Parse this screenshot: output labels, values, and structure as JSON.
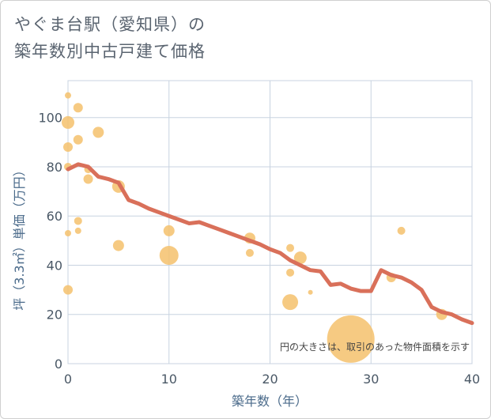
{
  "title_line1": "やぐま台駅（愛知県）の",
  "title_line2": "築年数別中古戸建て価格",
  "chart_data": {
    "type": "scatter",
    "title": "やぐま台駅（愛知県）の築年数別中古戸建て価格",
    "xlabel": "築年数（年）",
    "ylabel": "坪（3.3㎡）単価（万円）",
    "xlim": [
      0,
      40
    ],
    "ylim": [
      0,
      115
    ],
    "xticks": [
      "0",
      "10",
      "20",
      "30",
      "40"
    ],
    "yticks": [
      "0",
      "20",
      "40",
      "60",
      "80",
      "100"
    ],
    "xtick_values": [
      0,
      10,
      20,
      30,
      40
    ],
    "ytick_values": [
      0,
      20,
      40,
      60,
      80,
      100
    ],
    "note": "円の大きさは、取引のあった物件面積を示す",
    "bubble_color": "#f5c16c",
    "line_color": "#d9705a",
    "bubbles": [
      {
        "x": 0,
        "y": 109,
        "size": 4
      },
      {
        "x": 0,
        "y": 98,
        "size": 8
      },
      {
        "x": 0,
        "y": 88,
        "size": 6
      },
      {
        "x": 0,
        "y": 80,
        "size": 5
      },
      {
        "x": 0,
        "y": 53,
        "size": 4
      },
      {
        "x": 0,
        "y": 30,
        "size": 6
      },
      {
        "x": 1,
        "y": 104,
        "size": 6
      },
      {
        "x": 1,
        "y": 91,
        "size": 6
      },
      {
        "x": 1,
        "y": 58,
        "size": 5
      },
      {
        "x": 1,
        "y": 54,
        "size": 4
      },
      {
        "x": 2,
        "y": 79,
        "size": 5
      },
      {
        "x": 2,
        "y": 75,
        "size": 6
      },
      {
        "x": 3,
        "y": 94,
        "size": 7
      },
      {
        "x": 5,
        "y": 72,
        "size": 8
      },
      {
        "x": 5,
        "y": 48,
        "size": 7
      },
      {
        "x": 10,
        "y": 54,
        "size": 7
      },
      {
        "x": 10,
        "y": 44,
        "size": 12
      },
      {
        "x": 18,
        "y": 51,
        "size": 7
      },
      {
        "x": 18,
        "y": 45,
        "size": 5
      },
      {
        "x": 22,
        "y": 47,
        "size": 5
      },
      {
        "x": 22,
        "y": 37,
        "size": 5
      },
      {
        "x": 22,
        "y": 25,
        "size": 10
      },
      {
        "x": 23,
        "y": 43,
        "size": 8
      },
      {
        "x": 24,
        "y": 29,
        "size": 3
      },
      {
        "x": 28,
        "y": 10,
        "size": 30
      },
      {
        "x": 32,
        "y": 35,
        "size": 6
      },
      {
        "x": 33,
        "y": 54,
        "size": 5
      },
      {
        "x": 37,
        "y": 20,
        "size": 7
      }
    ],
    "trend_line": {
      "x": [
        0,
        1,
        2,
        3,
        4,
        5,
        6,
        7,
        8,
        9,
        10,
        11,
        12,
        13,
        14,
        15,
        16,
        17,
        18,
        19,
        20,
        21,
        22,
        23,
        24,
        25,
        26,
        27,
        28,
        29,
        30,
        31,
        32,
        33,
        34,
        35,
        36,
        37,
        38,
        39,
        40
      ],
      "y": [
        79,
        81,
        80,
        76,
        75,
        73.5,
        66.5,
        65,
        63,
        61.5,
        60,
        58.5,
        57,
        57.5,
        56,
        54.5,
        53,
        51.5,
        50,
        48.5,
        46.5,
        45,
        42,
        40,
        38,
        37.5,
        32,
        32.5,
        30.5,
        29.5,
        29.5,
        38,
        36,
        35,
        33,
        30,
        23,
        21,
        20,
        18,
        16.5
      ]
    }
  }
}
